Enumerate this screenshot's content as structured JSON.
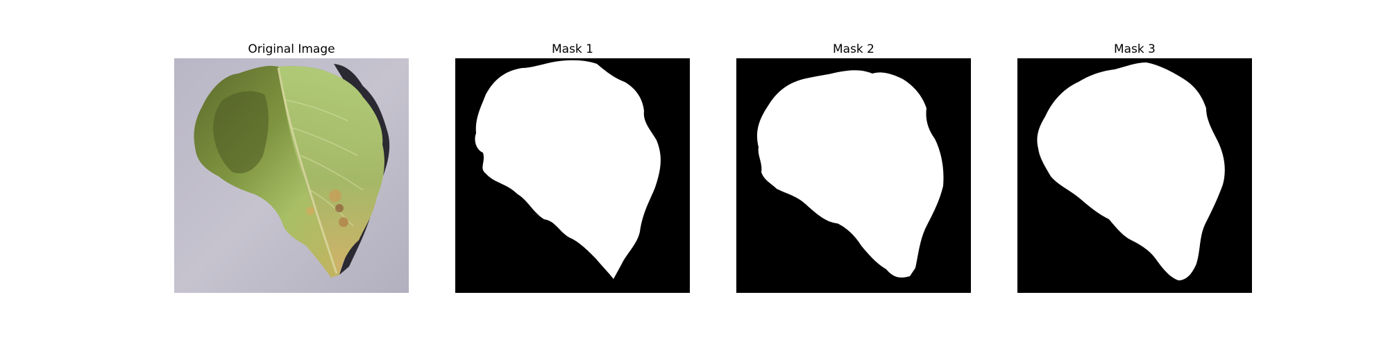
{
  "figure": {
    "panels": [
      {
        "title": "Original Image",
        "content": "photo of a yellow-green leaf on a grey textured background"
      },
      {
        "title": "Mask 1",
        "content": "binary segmentation mask"
      },
      {
        "title": "Mask 2",
        "content": "binary segmentation mask"
      },
      {
        "title": "Mask 3",
        "content": "binary segmentation mask"
      }
    ]
  },
  "colors": {
    "background": "#ffffff",
    "mask_foreground": "#ffffff",
    "mask_background": "#000000",
    "photo_background": "#bfbcc8",
    "leaf_light": "#a9c46a",
    "leaf_dark": "#4d5a22",
    "leaf_yellow": "#d2b264",
    "shadow": "#2c2a32"
  }
}
